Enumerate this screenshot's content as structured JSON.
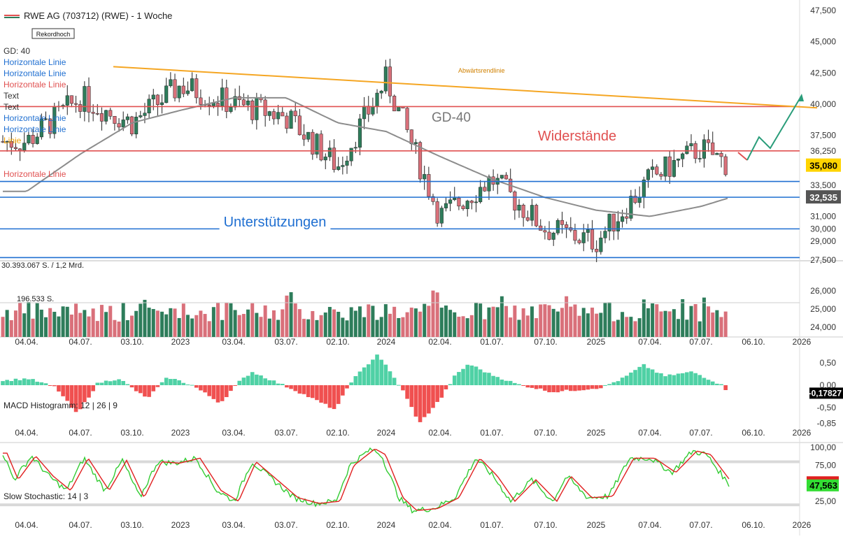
{
  "header": {
    "title": "RWE AG (703712) (RWE) - 1 Woche",
    "badge": "Rekordhoch",
    "legend_items": [
      {
        "label": "GD: 40",
        "color": "#333333"
      },
      {
        "label": "Horizontale Linie",
        "color": "#1f6fd1"
      },
      {
        "label": "Horizontale Linie",
        "color": "#1f6fd1"
      },
      {
        "label": "Horizontale Linie",
        "color": "#e05050"
      },
      {
        "label": "Text",
        "color": "#333333"
      },
      {
        "label": "Text",
        "color": "#333333"
      },
      {
        "label": "Horizontale Linie",
        "color": "#1f6fd1"
      },
      {
        "label": "Horizontale Linie",
        "color": "#1f6fd1"
      },
      {
        "label": "Linie",
        "color": "#f0a000"
      },
      {
        "label": "Horizontale Linie",
        "color": "#e05050"
      }
    ]
  },
  "colors": {
    "up": "#2e7d5b",
    "down": "#d9707a",
    "ma": "#8c8c8c",
    "trend": "#f5a623",
    "resistance": "#e05050",
    "support": "#1f6fd1",
    "macd_pos": "#4fd1a5",
    "macd_neg": "#f05050",
    "stoch_k": "#33cc33",
    "stoch_d": "#e02020",
    "projection": "#2a9d7a"
  },
  "annotations": {
    "ma_label": "GD-40",
    "resistance_label": "Widerstände",
    "support_label": "Unterstützungen",
    "trend_label": "Abwärtsrendlinie",
    "last_price": "35,080",
    "support_price": "32,535"
  },
  "x_axis": {
    "labels": [
      "04.04.",
      "04.07.",
      "03.10.",
      "2023",
      "03.04.",
      "03.07.",
      "02.10.",
      "2024",
      "02.04.",
      "01.07.",
      "07.10.",
      "2025",
      "07.04.",
      "07.07.",
      "06.10.",
      "2026"
    ]
  },
  "price_axis": {
    "ticks": [
      "47,500",
      "45,000",
      "42,500",
      "40,000",
      "37,500",
      "36,250",
      "33,500",
      "31,000",
      "30,000",
      "29,000",
      "27,500"
    ]
  },
  "volume_panel": {
    "label": "30.393.067 S. / 1,2 Mrd.",
    "avg_label": "196.533 S.",
    "ticks": [
      "26,000",
      "25,000",
      "24,000"
    ]
  },
  "macd_panel": {
    "label": "MACD Histogramm: 12 | 26 | 9",
    "ticks": [
      "0,50",
      "0,00",
      "-0,50",
      "-0,85"
    ],
    "current": "-0,17827"
  },
  "stoch_panel": {
    "label": "Slow Stochastic: 14 | 3",
    "ticks": [
      "100,00",
      "75,00",
      "50,00",
      "25,00"
    ],
    "current": "47,563"
  },
  "chart_data": [
    {
      "type": "line",
      "title": "RWE AG (703712) (RWE) - 1 Woche",
      "x": [
        "04.04.2022",
        "04.07.2022",
        "03.10.2022",
        "2023",
        "03.04.2023",
        "03.07.2023",
        "02.10.2023",
        "2024",
        "02.04.2024",
        "01.07.2024",
        "07.10.2024",
        "2025",
        "07.04.2025",
        "07.07.2025",
        "09.2025"
      ],
      "series": [
        {
          "name": "RWE AG",
          "values": [
            37.0,
            40.5,
            38.5,
            41.5,
            40.0,
            39.0,
            35.0,
            42.0,
            31.0,
            34.0,
            30.0,
            29.0,
            34.0,
            36.5,
            35.08
          ]
        },
        {
          "name": "GD-40",
          "values": [
            33.0,
            36.0,
            38.5,
            39.5,
            40.5,
            40.5,
            38.5,
            37.8,
            35.8,
            34.0,
            32.5,
            31.5,
            31.0,
            31.8,
            32.5
          ]
        }
      ],
      "horizontal_lines": [
        {
          "label": "Widerstände",
          "value": 39.8
        },
        {
          "label": "Widerstände",
          "value": 36.25
        },
        {
          "value": 33.8
        },
        {
          "value": 32.535
        },
        {
          "label": "Unterstützungen",
          "value": 30.0
        },
        {
          "value": 27.7
        }
      ],
      "trendline": {
        "label": "Abwärtsrendlinie",
        "start": 43.0,
        "end": 39.7
      },
      "ylim": [
        27.5,
        47.5
      ],
      "last_value": 35.08
    },
    {
      "type": "bar",
      "title": "30.393.067 S. / 1,2 Mrd.",
      "ylim": [
        24000,
        26000
      ]
    },
    {
      "type": "bar",
      "title": "MACD Histogramm: 12 | 26 | 9",
      "ylim": [
        -0.85,
        0.5
      ],
      "last_value": -0.17827
    },
    {
      "type": "line",
      "title": "Slow Stochastic: 14 | 3",
      "ylim": [
        0,
        100
      ],
      "levels": [
        80,
        20
      ],
      "last_value": 47.563
    }
  ]
}
